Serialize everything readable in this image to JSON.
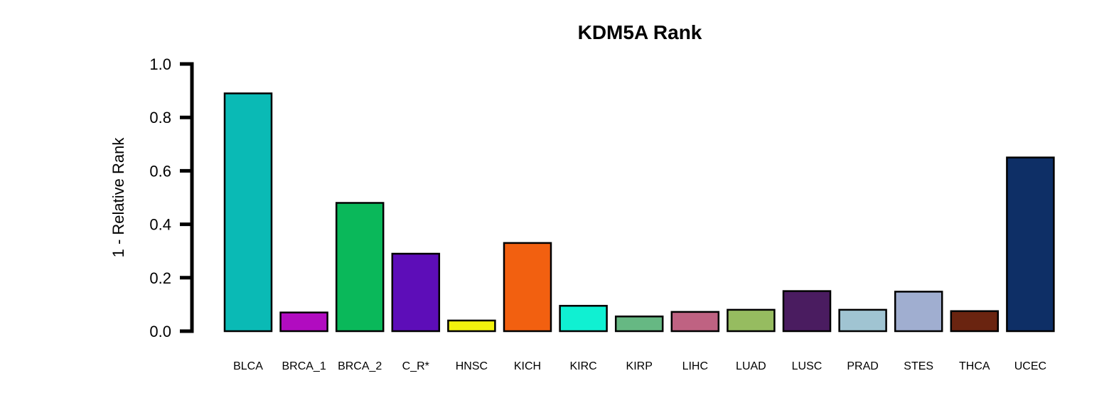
{
  "chart_data": {
    "type": "bar",
    "title": "KDM5A Rank",
    "xlabel": "",
    "ylabel": "1 - Relative Rank",
    "ylim": [
      0,
      1
    ],
    "yticks": [
      "0.0",
      "0.2",
      "0.4",
      "0.6",
      "0.8",
      "1.0"
    ],
    "ytick_values": [
      0,
      0.2,
      0.4,
      0.6,
      0.8,
      1.0
    ],
    "grid": false,
    "categories": [
      "BLCA",
      "BRCA_1",
      "BRCA_2",
      "C_R*",
      "HNSC",
      "KICH",
      "KIRC",
      "KIRP",
      "LIHC",
      "LUAD",
      "LUSC",
      "PRAD",
      "STES",
      "THCA",
      "UCEC"
    ],
    "values": [
      0.89,
      0.07,
      0.48,
      0.29,
      0.04,
      0.33,
      0.095,
      0.055,
      0.072,
      0.08,
      0.15,
      0.08,
      0.148,
      0.075,
      0.65
    ],
    "colors": [
      "#0ABAB5",
      "#B10CC0",
      "#0AB85A",
      "#5D0DB8",
      "#F2F20D",
      "#F26010",
      "#10F0D2",
      "#66B883",
      "#BF6282",
      "#96BC60",
      "#4A1C60",
      "#A0C4D2",
      "#A0AED0",
      "#6A2410",
      "#0E2F66"
    ]
  }
}
